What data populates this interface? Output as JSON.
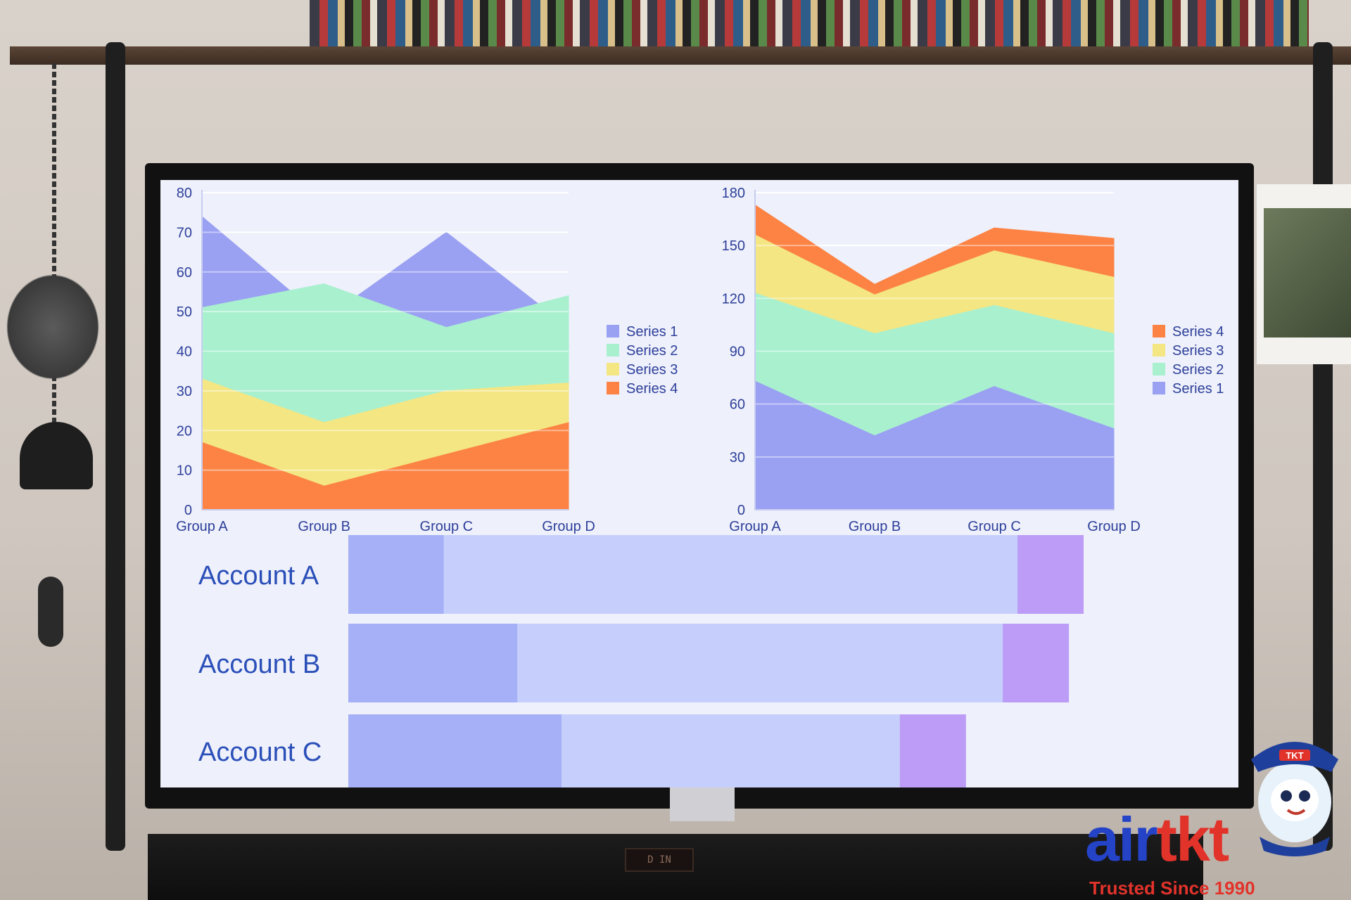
{
  "chart_data": [
    {
      "type": "area",
      "stacked": false,
      "categories": [
        "Group A",
        "Group B",
        "Group C",
        "Group D"
      ],
      "ylim": [
        0,
        80
      ],
      "yticks": [
        0,
        10,
        20,
        30,
        40,
        50,
        60,
        70,
        80
      ],
      "grid": true,
      "legend_position": "right",
      "series": [
        {
          "name": "Series 1",
          "color": "#9aa0f2",
          "values": [
            74,
            48,
            70,
            46
          ]
        },
        {
          "name": "Series 2",
          "color": "#a9f0cf",
          "values": [
            51,
            57,
            46,
            54
          ]
        },
        {
          "name": "Series 3",
          "color": "#f4e682",
          "values": [
            33,
            22,
            30,
            32
          ]
        },
        {
          "name": "Series 4",
          "color": "#fc8344",
          "values": [
            17,
            6,
            14,
            22
          ]
        }
      ]
    },
    {
      "type": "area",
      "stacked": true,
      "categories": [
        "Group A",
        "Group B",
        "Group C",
        "Group D"
      ],
      "ylim": [
        0,
        180
      ],
      "yticks": [
        0,
        30,
        60,
        90,
        120,
        150,
        180
      ],
      "grid": true,
      "legend_position": "right",
      "legend_order": [
        "Series 4",
        "Series 3",
        "Series 2",
        "Series 1"
      ],
      "series": [
        {
          "name": "Series 1",
          "color": "#9aa0f2",
          "values": [
            73,
            42,
            70,
            46
          ]
        },
        {
          "name": "Series 2",
          "color": "#a9f0cf",
          "values": [
            50,
            58,
            46,
            54
          ]
        },
        {
          "name": "Series 3",
          "color": "#f4e682",
          "values": [
            33,
            22,
            31,
            32
          ]
        },
        {
          "name": "Series 4",
          "color": "#fc8344",
          "values": [
            17,
            6,
            13,
            22
          ]
        }
      ]
    },
    {
      "type": "bar",
      "orientation": "horizontal",
      "stacked": true,
      "categories": [
        "Account A",
        "Account B",
        "Account C"
      ],
      "series": [
        {
          "color": "#a5b0f7",
          "values": [
            13,
            23,
            29
          ]
        },
        {
          "color": "#c6cffb",
          "values": [
            78,
            66,
            46
          ]
        },
        {
          "color": "#bc9cf6",
          "values": [
            9,
            9,
            9
          ]
        }
      ],
      "scale_max": 100
    }
  ],
  "branding": {
    "logo_air": "air",
    "logo_tkt": "tkt",
    "tagline": "Trusted Since 1990",
    "mascot_badge": "TKT"
  },
  "soundbar": {
    "display_text": "D IN"
  }
}
